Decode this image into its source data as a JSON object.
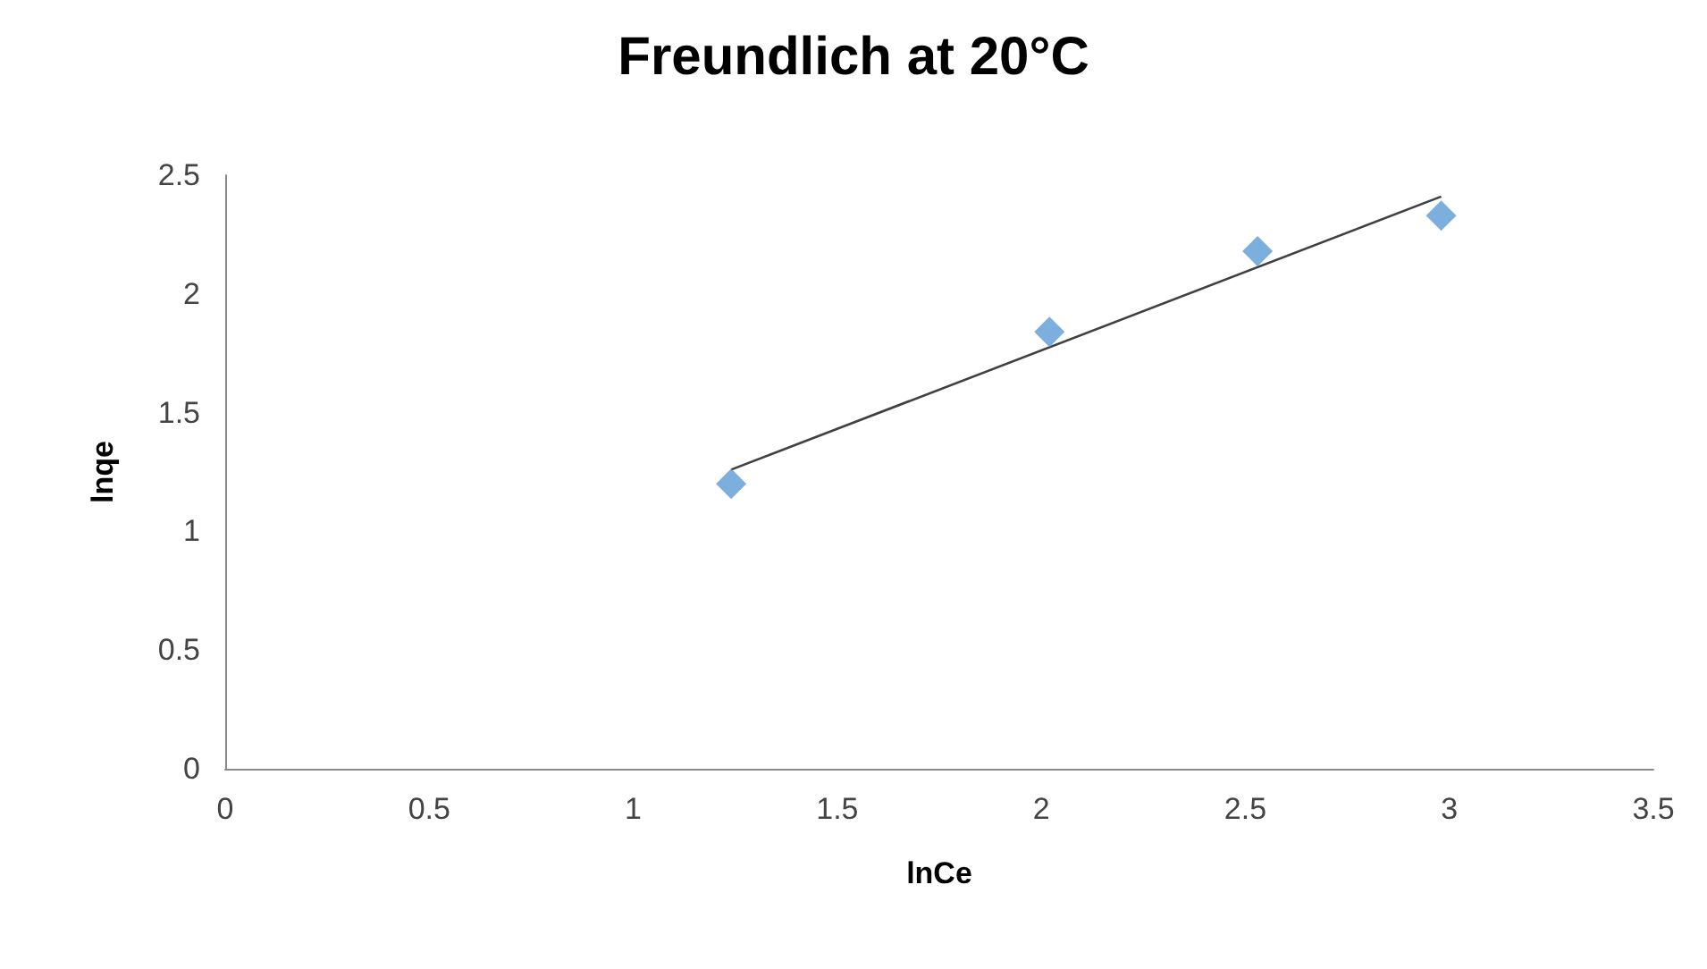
{
  "chart_data": {
    "type": "scatter",
    "title": "Freundlich at 20°C",
    "xlabel": "lnCe",
    "ylabel": "lnqe",
    "series": [
      {
        "color": "#5b9bd5",
        "marker": "diamond",
        "x": [
          1.24,
          2.02,
          2.53,
          2.98
        ],
        "values": [
          1.2,
          1.84,
          2.18,
          2.33
        ]
      },
      {
        "type": "line",
        "color": "#404040",
        "marker": "none",
        "x": [
          1.24,
          2.98
        ],
        "values": [
          1.26,
          2.41
        ]
      }
    ],
    "xlim": [
      0,
      3.5
    ],
    "xticks": [
      0,
      0.5,
      1,
      1.5,
      2,
      2.5,
      3,
      3.5
    ],
    "ylim": [
      0,
      2.5
    ],
    "yticks": [
      0,
      0.5,
      1,
      1.5,
      2,
      2.5
    ],
    "grid": false
  }
}
